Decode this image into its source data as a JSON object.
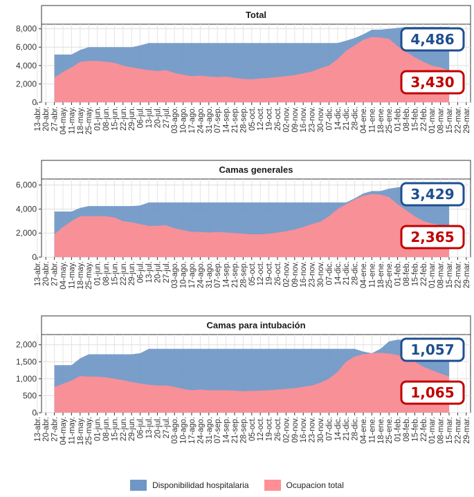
{
  "colors": {
    "disponibilidad": "#6f96c6",
    "ocupacion": "#ff8f95",
    "blue_callout": "#1f4f8f",
    "red_callout": "#c00000"
  },
  "legend": {
    "disponibilidad_label": "Disponibilidad hospitalaria",
    "ocupacion_label": "Ocupacion total"
  },
  "chart_data": [
    {
      "type": "area",
      "title": "Total",
      "ylim": [
        0,
        8500
      ],
      "yticks": [
        0,
        2000,
        4000,
        6000,
        8000
      ],
      "ytick_labels": [
        "0",
        "2,000",
        "4,000",
        "6,000",
        "8,000"
      ],
      "x_labels": [
        "13-abr.",
        "20-abr.",
        "27-abr.",
        "04-may.",
        "11-may.",
        "18-may.",
        "25-may.",
        "01-jun.",
        "08-jun.",
        "15-jun.",
        "22-jun.",
        "29-jun.",
        "06-jul.",
        "13-jul.",
        "20-jul.",
        "27-jul.",
        "03-ago.",
        "10-ago.",
        "17-ago.",
        "24-ago.",
        "31-ago.",
        "07-sep.",
        "14-sep.",
        "21-sep.",
        "28-sep.",
        "05-oct.",
        "12-oct.",
        "19-oct.",
        "26-oct.",
        "02-nov.",
        "09-nov.",
        "16-nov.",
        "23-nov.",
        "30-nov.",
        "07-dic.",
        "14-dic.",
        "21-dic.",
        "28-dic.",
        "04-ene.",
        "11-ene.",
        "18-ene.",
        "25-ene.",
        "01-feb.",
        "08-feb.",
        "15-feb.",
        "22-feb.",
        "01-mar.",
        "08-mar.",
        "15-mar.",
        "22-mar.",
        "29-mar."
      ],
      "x_start_index": 2,
      "series": [
        {
          "name": "Disponibilidad hospitalaria",
          "values": [
            5200,
            5200,
            5200,
            5700,
            6000,
            6000,
            6000,
            6000,
            6000,
            6000,
            6200,
            6450,
            6450,
            6450,
            6450,
            6450,
            6450,
            6450,
            6450,
            6450,
            6450,
            6450,
            6450,
            6450,
            6450,
            6450,
            6450,
            6450,
            6450,
            6450,
            6450,
            6450,
            6450,
            6450,
            6700,
            7000,
            7400,
            7900,
            7900,
            8000,
            8100,
            8200,
            8200,
            8200,
            8200,
            8200,
            8200
          ]
        },
        {
          "name": "Ocupacion total",
          "values": [
            2700,
            3300,
            3800,
            4400,
            4500,
            4500,
            4400,
            4300,
            4000,
            3800,
            3650,
            3500,
            3400,
            3500,
            3200,
            3000,
            2850,
            2900,
            2800,
            2750,
            2800,
            2650,
            2550,
            2500,
            2600,
            2650,
            2750,
            2850,
            2950,
            3150,
            3350,
            3700,
            4000,
            4700,
            5600,
            6200,
            6800,
            7100,
            7050,
            6900,
            6100,
            5500,
            4900,
            4400,
            4000,
            3800,
            3430
          ]
        }
      ],
      "callouts": {
        "disponibilidad": "4,486",
        "ocupacion": "3,430"
      }
    },
    {
      "type": "area",
      "title": "Camas generales",
      "ylim": [
        0,
        6500
      ],
      "yticks": [
        0,
        2000,
        4000,
        6000
      ],
      "ytick_labels": [
        "0",
        "2,000",
        "4,000",
        "6,000"
      ],
      "x_labels": [
        "13-abr.",
        "20-abr.",
        "27-abr.",
        "04-may.",
        "11-may.",
        "18-may.",
        "25-may.",
        "01-jun.",
        "08-jun.",
        "15-jun.",
        "22-jun.",
        "29-jun.",
        "06-jul.",
        "13-jul.",
        "20-jul.",
        "27-jul.",
        "03-ago.",
        "10-ago.",
        "17-ago.",
        "24-ago.",
        "31-ago.",
        "07-sep.",
        "14-sep.",
        "21-sep.",
        "28-sep.",
        "05-oct.",
        "12-oct.",
        "19-oct.",
        "26-oct.",
        "02-nov.",
        "09-nov.",
        "16-nov.",
        "23-nov.",
        "30-nov.",
        "07-dic.",
        "14-dic.",
        "21-dic.",
        "28-dic.",
        "04-ene.",
        "11-ene.",
        "18-ene.",
        "25-ene.",
        "01-feb.",
        "08-feb.",
        "15-feb.",
        "22-feb.",
        "01-mar.",
        "08-mar.",
        "15-mar.",
        "22-mar.",
        "29-mar."
      ],
      "x_start_index": 2,
      "series": [
        {
          "name": "Disponibilidad hospitalaria",
          "values": [
            3800,
            3800,
            3800,
            4100,
            4250,
            4250,
            4250,
            4250,
            4250,
            4250,
            4300,
            4550,
            4550,
            4550,
            4550,
            4550,
            4550,
            4550,
            4550,
            4550,
            4550,
            4550,
            4550,
            4550,
            4550,
            4550,
            4550,
            4550,
            4550,
            4550,
            4550,
            4550,
            4550,
            4550,
            4550,
            4900,
            5300,
            5500,
            5500,
            5700,
            5800,
            5950,
            5950,
            5950,
            5950,
            5950,
            5950
          ]
        },
        {
          "name": "Ocupacion total",
          "values": [
            1900,
            2500,
            3000,
            3400,
            3400,
            3400,
            3400,
            3300,
            3000,
            2900,
            2750,
            2600,
            2600,
            2650,
            2400,
            2250,
            2100,
            2100,
            2050,
            2100,
            2050,
            2000,
            1950,
            1900,
            1900,
            1950,
            2050,
            2150,
            2300,
            2500,
            2750,
            2950,
            3400,
            4000,
            4400,
            4800,
            5100,
            5250,
            5200,
            5000,
            4400,
            3900,
            3400,
            3000,
            2800,
            2650,
            2365
          ]
        }
      ],
      "callouts": {
        "disponibilidad": "3,429",
        "ocupacion": "2,365"
      }
    },
    {
      "type": "area",
      "title": "Camas para intubación",
      "ylim": [
        0,
        2300
      ],
      "yticks": [
        0,
        500,
        1000,
        1500,
        2000
      ],
      "ytick_labels": [
        "0",
        "500",
        "1,000",
        "1,500",
        "2,000"
      ],
      "x_labels": [
        "13-abr.",
        "20-abr.",
        "27-abr.",
        "04-may.",
        "11-may.",
        "18-may.",
        "25-may.",
        "01-jun.",
        "08-jun.",
        "15-jun.",
        "22-jun.",
        "29-jun.",
        "06-jul.",
        "13-jul.",
        "20-jul.",
        "27-jul.",
        "03-ago.",
        "10-ago.",
        "17-ago.",
        "24-ago.",
        "31-ago.",
        "07-sep.",
        "14-sep.",
        "21-sep.",
        "28-sep.",
        "05-oct.",
        "12-oct.",
        "19-oct.",
        "26-oct.",
        "02-nov.",
        "09-nov.",
        "16-nov.",
        "23-nov.",
        "30-nov.",
        "07-dic.",
        "14-dic.",
        "21-dic.",
        "28-dic.",
        "04-ene.",
        "11-ene.",
        "18-ene.",
        "25-ene.",
        "01-feb.",
        "08-feb.",
        "15-feb.",
        "22-feb.",
        "01-mar.",
        "08-mar.",
        "15-mar.",
        "22-mar.",
        "29-mar."
      ],
      "x_start_index": 2,
      "series": [
        {
          "name": "Disponibilidad hospitalaria",
          "values": [
            1400,
            1400,
            1400,
            1600,
            1720,
            1720,
            1720,
            1720,
            1720,
            1720,
            1750,
            1880,
            1880,
            1880,
            1880,
            1880,
            1880,
            1880,
            1880,
            1880,
            1880,
            1880,
            1880,
            1880,
            1880,
            1880,
            1880,
            1880,
            1880,
            1880,
            1880,
            1880,
            1880,
            1880,
            1880,
            1880,
            1800,
            1750,
            1880,
            2100,
            2150,
            2150,
            2150,
            2150,
            2150,
            2150,
            2150
          ]
        },
        {
          "name": "Ocupacion total",
          "values": [
            750,
            850,
            950,
            1080,
            1060,
            1060,
            1040,
            1000,
            960,
            900,
            860,
            820,
            800,
            800,
            760,
            700,
            660,
            680,
            660,
            660,
            660,
            650,
            630,
            640,
            650,
            660,
            680,
            700,
            720,
            760,
            800,
            880,
            1000,
            1200,
            1500,
            1650,
            1720,
            1750,
            1760,
            1740,
            1700,
            1600,
            1500,
            1350,
            1250,
            1150,
            1065
          ]
        }
      ],
      "callouts": {
        "disponibilidad": "1,057",
        "ocupacion": "1,065"
      }
    }
  ]
}
